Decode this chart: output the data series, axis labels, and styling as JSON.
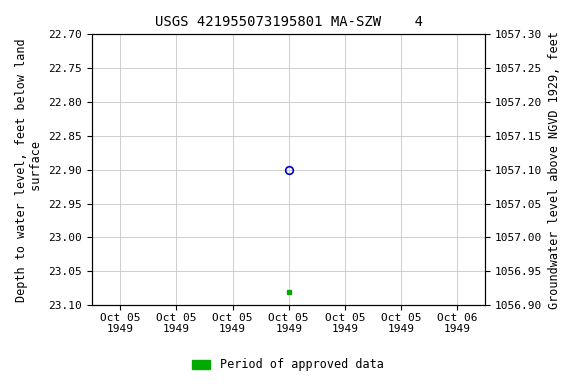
{
  "title": "USGS 421955073195801 MA-SZW    4",
  "ylabel_left": "Depth to water level, feet below land\n surface",
  "ylabel_right": "Groundwater level above NGVD 1929, feet",
  "ylim_left": [
    23.1,
    22.7
  ],
  "ylim_right": [
    1056.9,
    1057.3
  ],
  "yticks_left": [
    22.7,
    22.75,
    22.8,
    22.85,
    22.9,
    22.95,
    23.0,
    23.05,
    23.1
  ],
  "yticks_right": [
    1057.3,
    1057.25,
    1057.2,
    1057.15,
    1057.1,
    1057.05,
    1057.0,
    1056.95,
    1056.9
  ],
  "blue_point_x": 3,
  "blue_point_y": 22.9,
  "green_point_x": 3,
  "green_point_y": 23.08,
  "xtick_positions": [
    0,
    1,
    2,
    3,
    4,
    5,
    6
  ],
  "xtick_labels": [
    "Oct 05\n1949",
    "Oct 05\n1949",
    "Oct 05\n1949",
    "Oct 05\n1949",
    "Oct 05\n1949",
    "Oct 05\n1949",
    "Oct 06\n1949"
  ],
  "xlim": [
    -0.5,
    6.5
  ],
  "background_color": "#ffffff",
  "grid_color": "#c8c8c8",
  "blue_marker_color": "#0000cc",
  "green_marker_color": "#00aa00",
  "legend_label": "Period of approved data",
  "title_fontsize": 10,
  "label_fontsize": 8.5,
  "tick_fontsize": 8
}
